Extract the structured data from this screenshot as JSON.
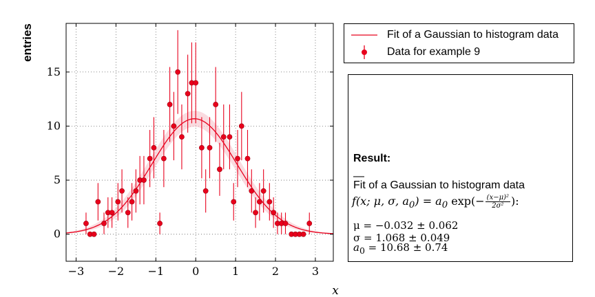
{
  "chart_data": {
    "type": "scatter",
    "ylabel": "entries",
    "xlabel": "x",
    "xlim": [
      -3.25,
      3.45
    ],
    "ylim": [
      -2.5,
      19.5
    ],
    "xticks": [
      -3,
      -2,
      -1,
      0,
      1,
      2,
      3
    ],
    "yticks": [
      0,
      5,
      10,
      15
    ],
    "xtick_labels": [
      "−3",
      "−2",
      "−1",
      "0",
      "1",
      "2",
      "3"
    ],
    "ytick_labels": [
      "0",
      "5",
      "10",
      "15"
    ],
    "grid": true,
    "legend_position": "outside-right-top",
    "series": [
      {
        "name": "Fit of a Gaussian to histogram data",
        "kind": "fit-line",
        "color": "#e8001c",
        "function": "gaussian",
        "mu": -0.032,
        "sigma": 1.068,
        "a0": 10.68,
        "band_color": "#f7c3cc"
      },
      {
        "name": "Data for example 9",
        "kind": "points-with-errorbars",
        "color": "#e8001c",
        "points": [
          {
            "x": -2.75,
            "y": 1
          },
          {
            "x": -2.65,
            "y": 0
          },
          {
            "x": -2.55,
            "y": 0
          },
          {
            "x": -2.45,
            "y": 3
          },
          {
            "x": -2.3,
            "y": 1
          },
          {
            "x": -2.2,
            "y": 2
          },
          {
            "x": -2.1,
            "y": 2
          },
          {
            "x": -1.95,
            "y": 3
          },
          {
            "x": -1.85,
            "y": 4
          },
          {
            "x": -1.7,
            "y": 2
          },
          {
            "x": -1.6,
            "y": 3
          },
          {
            "x": -1.5,
            "y": 4
          },
          {
            "x": -1.4,
            "y": 5
          },
          {
            "x": -1.3,
            "y": 5
          },
          {
            "x": -1.15,
            "y": 7
          },
          {
            "x": -1.05,
            "y": 8
          },
          {
            "x": -0.9,
            "y": 1
          },
          {
            "x": -0.8,
            "y": 7
          },
          {
            "x": -0.65,
            "y": 12
          },
          {
            "x": -0.55,
            "y": 10
          },
          {
            "x": -0.45,
            "y": 15
          },
          {
            "x": -0.35,
            "y": 9
          },
          {
            "x": -0.2,
            "y": 13
          },
          {
            "x": -0.1,
            "y": 14
          },
          {
            "x": 0.0,
            "y": 14
          },
          {
            "x": 0.15,
            "y": 8
          },
          {
            "x": 0.25,
            "y": 4
          },
          {
            "x": 0.35,
            "y": 8
          },
          {
            "x": 0.5,
            "y": 12
          },
          {
            "x": 0.6,
            "y": 6
          },
          {
            "x": 0.7,
            "y": 9
          },
          {
            "x": 0.85,
            "y": 9
          },
          {
            "x": 0.95,
            "y": 3
          },
          {
            "x": 1.05,
            "y": 7
          },
          {
            "x": 1.15,
            "y": 10
          },
          {
            "x": 1.3,
            "y": 7
          },
          {
            "x": 1.4,
            "y": 4
          },
          {
            "x": 1.5,
            "y": 2
          },
          {
            "x": 1.6,
            "y": 3
          },
          {
            "x": 1.7,
            "y": 4
          },
          {
            "x": 1.85,
            "y": 3
          },
          {
            "x": 1.95,
            "y": 2
          },
          {
            "x": 2.05,
            "y": 1
          },
          {
            "x": 2.15,
            "y": 1
          },
          {
            "x": 2.25,
            "y": 1
          },
          {
            "x": 2.4,
            "y": 0
          },
          {
            "x": 2.5,
            "y": 0
          },
          {
            "x": 2.6,
            "y": 0
          },
          {
            "x": 2.7,
            "y": 0
          },
          {
            "x": 2.85,
            "y": 1
          }
        ]
      }
    ]
  },
  "legend": {
    "items": [
      {
        "label": "Fit of a Gaussian to histogram data"
      },
      {
        "label": "Data for example 9"
      }
    ]
  },
  "result": {
    "title": "Result:",
    "rule": "—",
    "line1": "Fit of a Gaussian to histogram data",
    "formula_lhs": "f(x; μ, σ, a",
    "formula_sub": "0",
    "formula_mid": ") = a",
    "formula_exp": " exp(−",
    "frac_num": "(x−μ)²",
    "frac_den": "2σ²",
    "formula_end": "):",
    "mu": "μ = −0.032 ± 0.062",
    "sigma": "σ = 1.068 ± 0.049",
    "a0_label": "a",
    "a0_value": " = 10.68 ± 0.74"
  }
}
